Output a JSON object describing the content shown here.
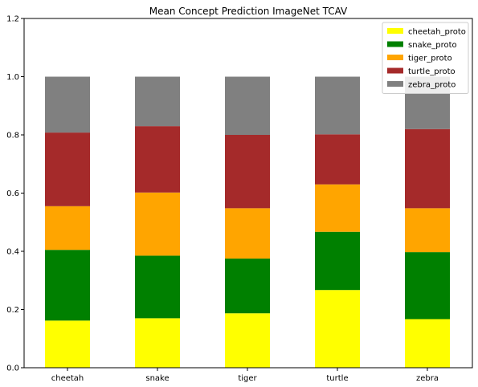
{
  "chart_data": {
    "type": "bar",
    "stacked": true,
    "title": "Mean Concept Prediction ImageNet TCAV",
    "xlabel": "",
    "ylabel": "",
    "categories": [
      "cheetah",
      "snake",
      "tiger",
      "turtle",
      "zebra"
    ],
    "ylim": [
      0,
      1.2
    ],
    "yticks": [
      "0.0",
      "0.2",
      "0.4",
      "0.6",
      "0.8",
      "1.0",
      "1.2"
    ],
    "grid": false,
    "legend_position": "top-right",
    "series": [
      {
        "name": "cheetah_proto",
        "color": "#ffff00",
        "values": [
          0.162,
          0.17,
          0.187,
          0.267,
          0.167
        ]
      },
      {
        "name": "snake_proto",
        "color": "#008000",
        "values": [
          0.243,
          0.215,
          0.188,
          0.2,
          0.23
        ]
      },
      {
        "name": "tiger_proto",
        "color": "#ffa500",
        "values": [
          0.15,
          0.217,
          0.173,
          0.163,
          0.151
        ]
      },
      {
        "name": "turtle_proto",
        "color": "#a52a2a",
        "values": [
          0.253,
          0.228,
          0.252,
          0.172,
          0.272
        ]
      },
      {
        "name": "zebra_proto",
        "color": "#808080",
        "values": [
          0.192,
          0.17,
          0.2,
          0.198,
          0.18
        ]
      }
    ]
  }
}
